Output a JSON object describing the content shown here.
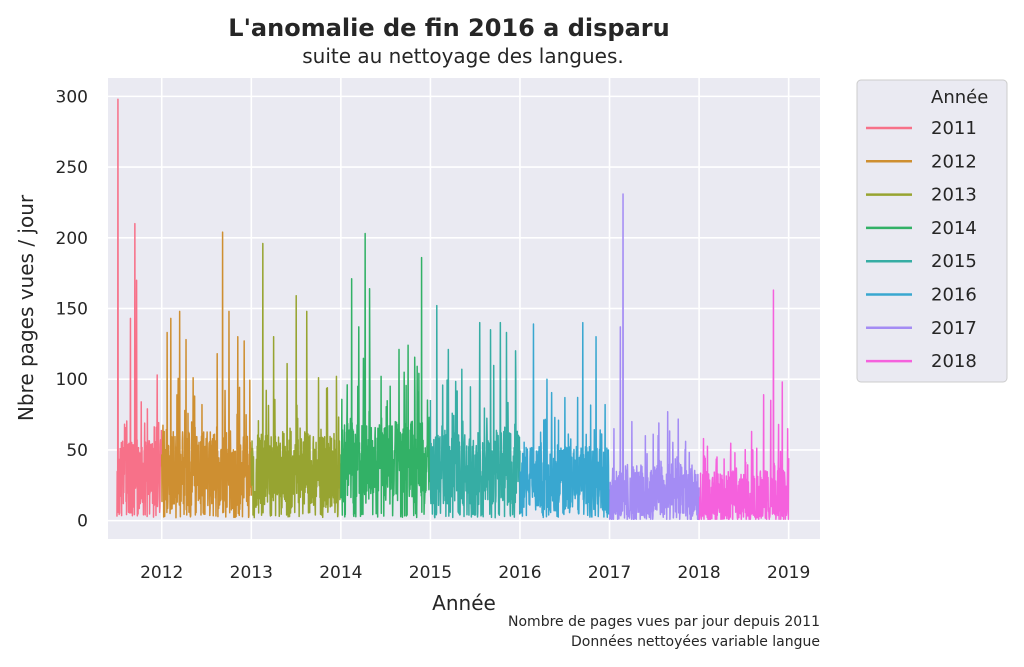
{
  "chart_data": {
    "type": "line",
    "title": "L'anomalie de fin 2016 a disparu",
    "subtitle": "suite au nettoyage des langues.",
    "xlabel": "Année",
    "ylabel": "Nbre pages vues / jour",
    "xlim": [
      2011.4,
      2019.35
    ],
    "ylim": [
      -13,
      313
    ],
    "x_ticks": [
      2012,
      2013,
      2014,
      2015,
      2016,
      2017,
      2018,
      2019
    ],
    "x_tick_labels": [
      "2012",
      "2013",
      "2014",
      "2015",
      "2016",
      "2017",
      "2018",
      "2019"
    ],
    "y_ticks": [
      0,
      50,
      100,
      150,
      200,
      250,
      300
    ],
    "y_tick_labels": [
      "0",
      "50",
      "100",
      "150",
      "200",
      "250",
      "300"
    ],
    "grid": true,
    "legend": {
      "title": "Année",
      "placement": "outside-right",
      "entries": [
        "2011",
        "2012",
        "2013",
        "2014",
        "2015",
        "2016",
        "2017",
        "2018"
      ]
    },
    "colors": {
      "2011": "#f77189",
      "2012": "#ce8f31",
      "2013": "#97a431",
      "2014": "#32b166",
      "2015": "#36ada4",
      "2016": "#39a7d0",
      "2017": "#a48cf4",
      "2018": "#f561dd"
    },
    "series": [
      {
        "name": "2011",
        "start": 2011.5,
        "end": 2012.0,
        "base": 28,
        "spread": 35,
        "peaks": [
          [
            2011.51,
            298
          ],
          [
            2011.54,
            36
          ],
          [
            2011.58,
            38
          ],
          [
            2011.65,
            143
          ],
          [
            2011.7,
            210
          ],
          [
            2011.72,
            170
          ],
          [
            2011.77,
            84
          ],
          [
            2011.84,
            79
          ],
          [
            2011.95,
            103
          ]
        ]
      },
      {
        "name": "2012",
        "start": 2012.0,
        "end": 2013.0,
        "base": 30,
        "spread": 40,
        "peaks": [
          [
            2012.06,
            133
          ],
          [
            2012.1,
            143
          ],
          [
            2012.2,
            148
          ],
          [
            2012.27,
            128
          ],
          [
            2012.35,
            101
          ],
          [
            2012.45,
            82
          ],
          [
            2012.62,
            118
          ],
          [
            2012.68,
            204
          ],
          [
            2012.75,
            148
          ],
          [
            2012.85,
            130
          ],
          [
            2012.92,
            127
          ]
        ]
      },
      {
        "name": "2013",
        "start": 2013.0,
        "end": 2014.0,
        "base": 30,
        "spread": 38,
        "peaks": [
          [
            2013.13,
            196
          ],
          [
            2013.25,
            130
          ],
          [
            2013.4,
            111
          ],
          [
            2013.5,
            159
          ],
          [
            2013.62,
            148
          ],
          [
            2013.75,
            101
          ],
          [
            2013.85,
            94
          ],
          [
            2013.95,
            102
          ]
        ]
      },
      {
        "name": "2014",
        "start": 2014.0,
        "end": 2015.0,
        "base": 35,
        "spread": 42,
        "peaks": [
          [
            2014.12,
            171
          ],
          [
            2014.2,
            137
          ],
          [
            2014.27,
            203
          ],
          [
            2014.32,
            164
          ],
          [
            2014.45,
            102
          ],
          [
            2014.55,
            95
          ],
          [
            2014.65,
            121
          ],
          [
            2014.75,
            124
          ],
          [
            2014.9,
            186
          ]
        ]
      },
      {
        "name": "2015",
        "start": 2015.0,
        "end": 2016.0,
        "base": 32,
        "spread": 38,
        "peaks": [
          [
            2015.07,
            152
          ],
          [
            2015.2,
            121
          ],
          [
            2015.35,
            107
          ],
          [
            2015.55,
            140
          ],
          [
            2015.67,
            135
          ],
          [
            2015.78,
            140
          ],
          [
            2015.85,
            133
          ],
          [
            2015.95,
            120
          ]
        ]
      },
      {
        "name": "2016",
        "start": 2016.0,
        "end": 2017.0,
        "base": 25,
        "spread": 33,
        "peaks": [
          [
            2016.15,
            139
          ],
          [
            2016.3,
            100
          ],
          [
            2016.5,
            87
          ],
          [
            2016.7,
            140
          ],
          [
            2016.85,
            130
          ],
          [
            2016.95,
            82
          ]
        ]
      },
      {
        "name": "2017",
        "start": 2017.0,
        "end": 2018.0,
        "base": 15,
        "spread": 30,
        "peaks": [
          [
            2017.05,
            65
          ],
          [
            2017.12,
            137
          ],
          [
            2017.15,
            231
          ],
          [
            2017.25,
            70
          ],
          [
            2017.4,
            60
          ],
          [
            2017.55,
            69
          ],
          [
            2017.65,
            77
          ],
          [
            2017.85,
            56
          ]
        ]
      },
      {
        "name": "2018",
        "start": 2018.0,
        "end": 2019.0,
        "base": 12,
        "spread": 28,
        "peaks": [
          [
            2018.05,
            58
          ],
          [
            2018.2,
            45
          ],
          [
            2018.4,
            48
          ],
          [
            2018.6,
            50
          ],
          [
            2018.72,
            89
          ],
          [
            2018.8,
            85
          ],
          [
            2018.83,
            163
          ],
          [
            2018.93,
            98
          ],
          [
            2018.99,
            65
          ]
        ]
      }
    ]
  },
  "footnote": {
    "line1": "Nombre de pages vues par jour depuis 2011",
    "line2": "Données nettoyées variable langue"
  }
}
